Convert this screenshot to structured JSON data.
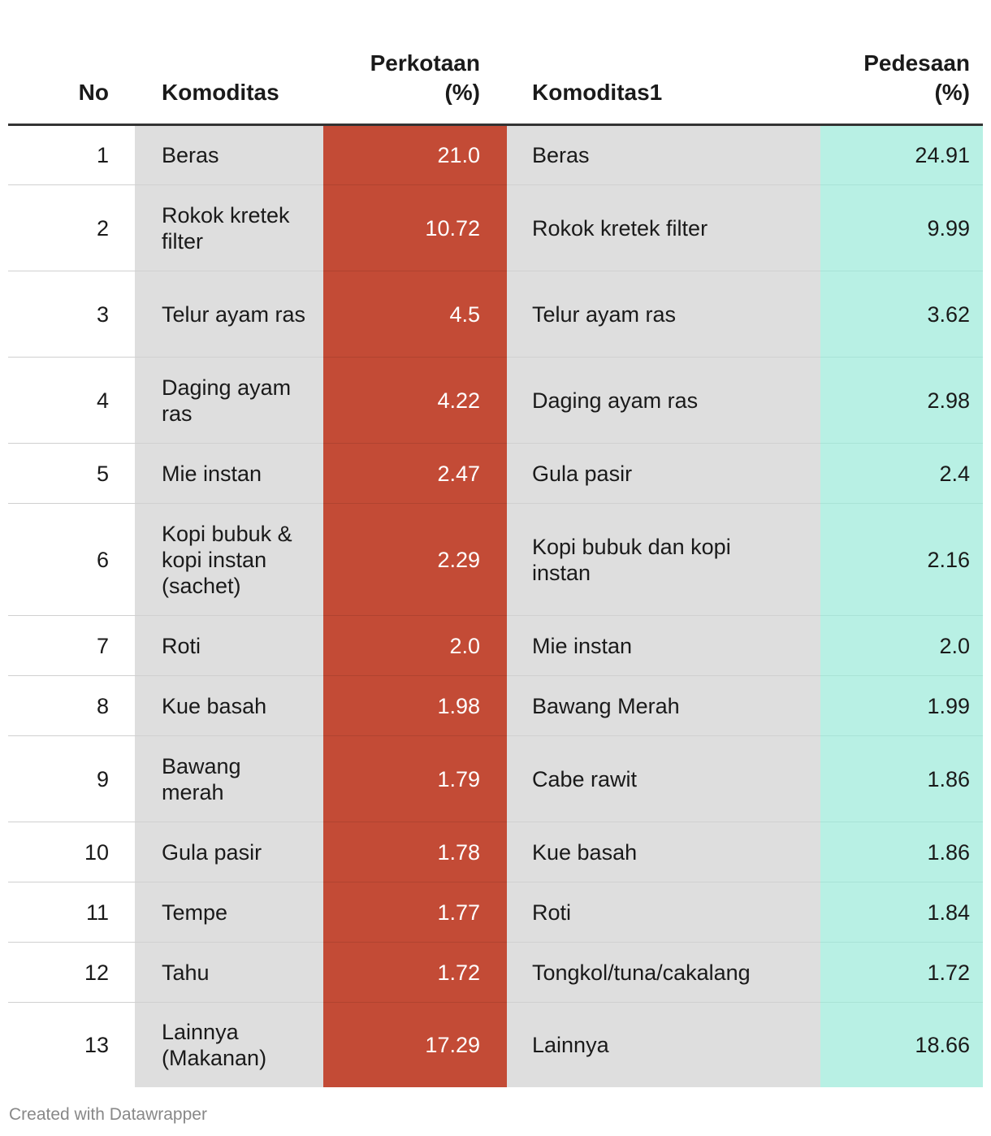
{
  "chart_data": {
    "type": "table",
    "columns": [
      "No",
      "Komoditas",
      "Perkotaan (%)",
      "Komoditas1",
      "Pedesaan (%)"
    ],
    "header": {
      "no": "No",
      "komoditas": "Komoditas",
      "perkotaan_line1": "Perkotaan",
      "perkotaan_line2": "(%)",
      "komoditas1": "Komoditas1",
      "pedesaan_line1": "Pedesaan",
      "pedesaan_line2": "(%)"
    },
    "rows": [
      {
        "no": "1",
        "komoditas": "Beras",
        "perkotaan": "21.0",
        "komoditas1": "Beras",
        "pedesaan": "24.91"
      },
      {
        "no": "2",
        "komoditas": "Rokok kretek filter",
        "perkotaan": "10.72",
        "komoditas1": "Rokok kretek filter",
        "pedesaan": "9.99"
      },
      {
        "no": "3",
        "komoditas": "Telur ayam ras",
        "perkotaan": "4.5",
        "komoditas1": "Telur ayam ras",
        "pedesaan": "3.62"
      },
      {
        "no": "4",
        "komoditas": "Daging ayam ras",
        "perkotaan": "4.22",
        "komoditas1": "Daging ayam ras",
        "pedesaan": "2.98"
      },
      {
        "no": "5",
        "komoditas": "Mie instan",
        "perkotaan": "2.47",
        "komoditas1": "Gula pasir",
        "pedesaan": "2.4"
      },
      {
        "no": "6",
        "komoditas": "Kopi bubuk & kopi instan (sachet)",
        "perkotaan": "2.29",
        "komoditas1": "Kopi bubuk dan kopi instan",
        "pedesaan": "2.16"
      },
      {
        "no": "7",
        "komoditas": "Roti",
        "perkotaan": "2.0",
        "komoditas1": "Mie instan",
        "pedesaan": "2.0"
      },
      {
        "no": "8",
        "komoditas": "Kue basah",
        "perkotaan": "1.98",
        "komoditas1": "Bawang Merah",
        "pedesaan": "1.99"
      },
      {
        "no": "9",
        "komoditas": "Bawang merah",
        "perkotaan": "1.79",
        "komoditas1": "Cabe rawit",
        "pedesaan": "1.86"
      },
      {
        "no": "10",
        "komoditas": "Gula pasir",
        "perkotaan": "1.78",
        "komoditas1": "Kue basah",
        "pedesaan": "1.86"
      },
      {
        "no": "11",
        "komoditas": "Tempe",
        "perkotaan": "1.77",
        "komoditas1": "Roti",
        "pedesaan": "1.84"
      },
      {
        "no": "12",
        "komoditas": "Tahu",
        "perkotaan": "1.72",
        "komoditas1": "Tongkol/tuna/cakalang",
        "pedesaan": "1.72"
      },
      {
        "no": "13",
        "komoditas": "Lainnya (Makanan)",
        "perkotaan": "17.29",
        "komoditas1": "Lainnya",
        "pedesaan": "18.66"
      }
    ],
    "colors": {
      "perkotaan_fill": "#c34b36",
      "pedesaan_fill": "#b8f0e4",
      "komoditas_fill": "#dedede"
    }
  },
  "footer": {
    "credit": "Created with Datawrapper"
  }
}
